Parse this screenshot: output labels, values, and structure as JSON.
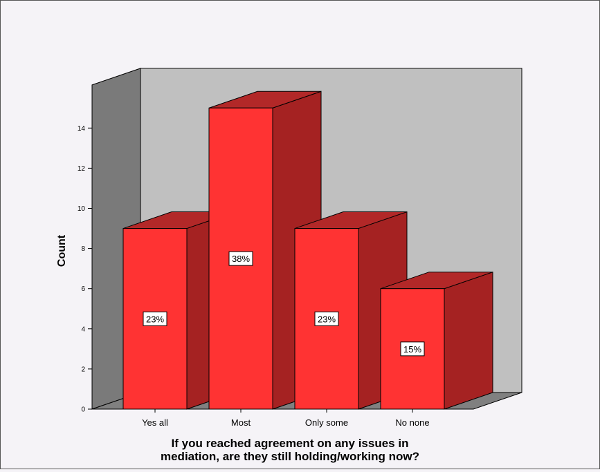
{
  "chart_data": {
    "type": "bar",
    "categories": [
      "Yes all",
      "Most",
      "Only some",
      "No none"
    ],
    "values": [
      9,
      15,
      9,
      6
    ],
    "data_labels": [
      "23%",
      "38%",
      "23%",
      "15%"
    ],
    "xlabel_lines": [
      "If you reached agreement on any issues in",
      "mediation, are they still holding/working now?"
    ],
    "ylabel": "Count",
    "ylim": [
      0,
      16
    ],
    "yticks": [
      0,
      2,
      4,
      6,
      8,
      10,
      12,
      14
    ],
    "style": "3d",
    "grid": false,
    "legend": "none"
  },
  "colors": {
    "bar_front": "#ff3333",
    "bar_side": "#a52222",
    "bar_top": "#b22828",
    "back_wall": "#c0c0c0",
    "side_wall": "#7a7a7a",
    "floor": "#808080",
    "background": "#f5f3f7"
  }
}
